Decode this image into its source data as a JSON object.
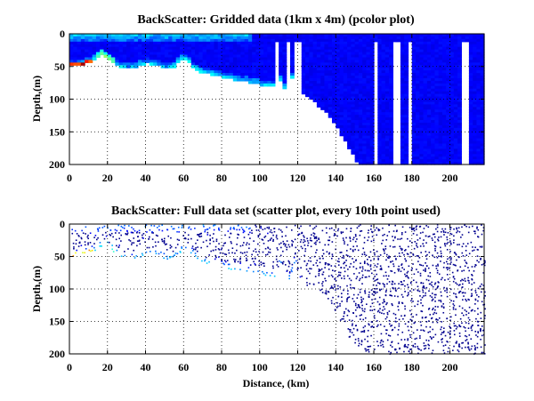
{
  "figure": {
    "panels": [
      {
        "title": "BackScatter: Gridded data (1km x 4m) (pcolor plot)",
        "ylabel": "Depth,(m)",
        "xlabel": "",
        "xticks": [
          "0",
          "20",
          "40",
          "60",
          "80",
          "100",
          "120",
          "140",
          "160",
          "180",
          "200"
        ],
        "yticks": [
          "0",
          "50",
          "100",
          "150",
          "200"
        ]
      },
      {
        "title": "BackScatter: Full data set (scatter plot, every 10th point used)",
        "ylabel": "Depth,(m)",
        "xlabel": "Distance, (km)",
        "xticks": [
          "0",
          "20",
          "40",
          "60",
          "80",
          "100",
          "120",
          "140",
          "160",
          "180",
          "200"
        ],
        "yticks": [
          "0",
          "50",
          "100",
          "150",
          "200"
        ]
      }
    ]
  },
  "chart_data": [
    {
      "type": "heatmap",
      "title": "BackScatter: Gridded data (1km x 4m) (pcolor plot)",
      "xlabel": "",
      "ylabel": "Depth,(m)",
      "xlim": [
        0,
        218
      ],
      "ylim": [
        200,
        0
      ],
      "y_reversed": true,
      "grid": true,
      "colormap": "jet",
      "background_color": "#ffffff",
      "seabed_profile": {
        "distance_km": [
          0,
          5,
          10,
          15,
          18,
          20,
          25,
          30,
          35,
          40,
          45,
          50,
          55,
          58,
          62,
          65,
          70,
          75,
          80,
          85,
          90,
          95,
          100,
          105,
          108,
          110,
          112,
          115,
          118,
          120,
          123,
          125,
          128,
          130,
          135,
          140,
          145,
          150,
          152,
          218
        ],
        "depth_m": [
          50,
          48,
          44,
          37,
          32,
          38,
          48,
          54,
          52,
          45,
          47,
          54,
          50,
          40,
          38,
          52,
          60,
          62,
          66,
          69,
          72,
          74,
          78,
          80,
          80,
          58,
          82,
          84,
          60,
          88,
          92,
          95,
          100,
          108,
          118,
          138,
          165,
          190,
          200,
          200
        ]
      },
      "vertical_gaps_km": [
        109,
        115,
        120,
        161,
        172,
        179,
        208
      ]
    },
    {
      "type": "scatter",
      "title": "BackScatter: Full data set (scatter plot, every 10th point used)",
      "xlabel": "Distance, (km)",
      "ylabel": "Depth,(m)",
      "xlim": [
        0,
        218
      ],
      "ylim": [
        200,
        0
      ],
      "y_reversed": true,
      "grid": true,
      "colormap": "jet",
      "point_color_deep": "#00008f",
      "note": "",
      "sampling": "every 10th point"
    }
  ]
}
